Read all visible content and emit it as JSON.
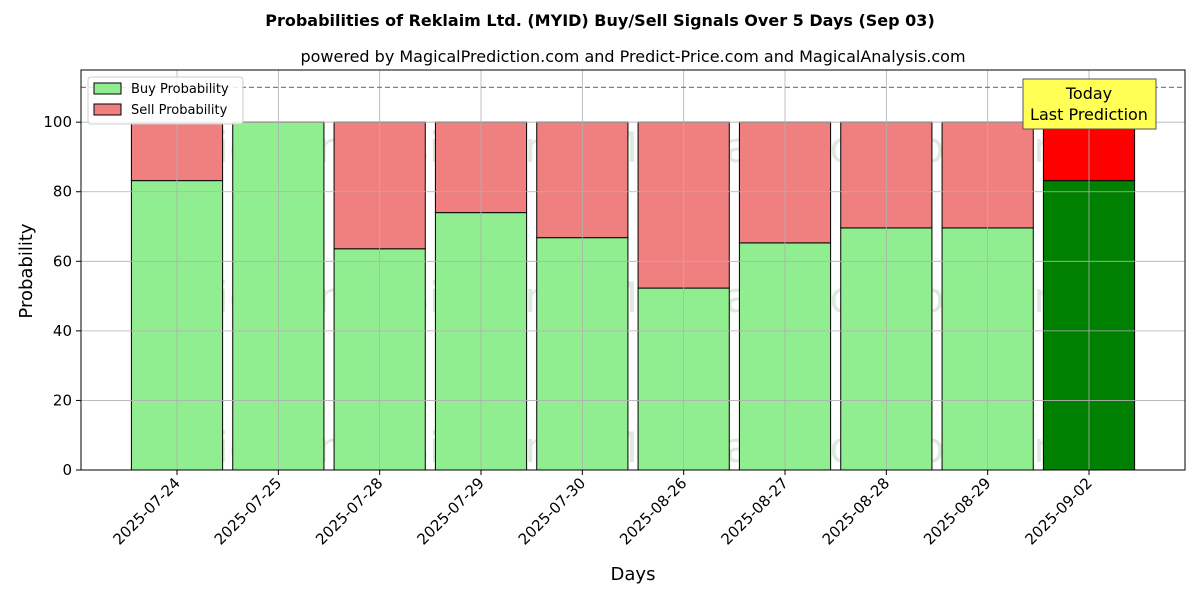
{
  "chart_data": {
    "type": "bar",
    "stacked": true,
    "title": "Probabilities of Reklaim Ltd. (MYID) Buy/Sell Signals Over 5 Days (Sep 03)",
    "subtitle": "powered by MagicalPrediction.com and Predict-Price.com and MagicalAnalysis.com",
    "xlabel": "Days",
    "ylabel": "Probability",
    "ylim": [
      0,
      115
    ],
    "yticks": [
      0,
      20,
      40,
      60,
      80,
      100
    ],
    "grid": true,
    "legend_position": "top-left",
    "reference_line": 110,
    "categories": [
      "2025-07-24",
      "2025-07-25",
      "2025-07-28",
      "2025-07-29",
      "2025-07-30",
      "2025-08-26",
      "2025-08-27",
      "2025-08-28",
      "2025-08-29",
      "2025-09-02"
    ],
    "series": [
      {
        "name": "Buy Probability",
        "values": [
          83.2,
          100,
          63.6,
          74.0,
          66.8,
          52.3,
          65.3,
          69.6,
          69.6,
          83.2
        ],
        "color": "#90ee90",
        "highlight_color": "#008000"
      },
      {
        "name": "Sell Probability",
        "values": [
          16.8,
          0,
          36.4,
          26.0,
          33.2,
          47.7,
          34.7,
          30.4,
          30.4,
          16.8
        ],
        "color": "#f08080",
        "highlight_color": "#ff0000"
      }
    ],
    "highlight_index": 9,
    "annotation": {
      "lines": [
        "Today",
        "Last Prediction"
      ],
      "background": "#ffff55"
    },
    "watermarks": [
      "MagicalAnalysis.com",
      "MagicalPrediction.com"
    ]
  }
}
